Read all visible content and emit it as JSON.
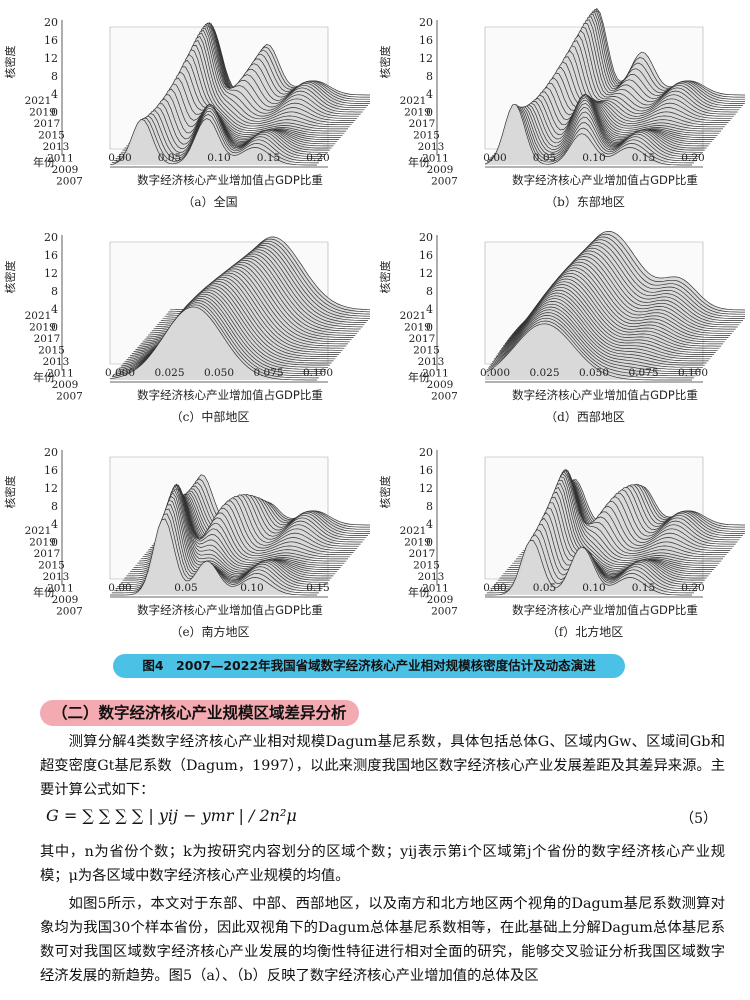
{
  "figure": {
    "panels": [
      {
        "id": "a",
        "caption": "（a）全国",
        "xticks": [
          "0.00",
          "0.05",
          "0.10",
          "0.15",
          "0.20"
        ],
        "peak": 0.045,
        "style": "multi"
      },
      {
        "id": "b",
        "caption": "（b）东部地区",
        "xticks": [
          "0.00",
          "0.05",
          "0.10",
          "0.15",
          "0.20"
        ],
        "peak": 0.05,
        "style": "multi"
      },
      {
        "id": "c",
        "caption": "（c）中部地区",
        "xticks": [
          "0.000",
          "0.025",
          "0.050",
          "0.075",
          "0.100"
        ],
        "peak": 0.045,
        "style": "smooth"
      },
      {
        "id": "d",
        "caption": "（d）西部地区",
        "xticks": [
          "0.000",
          "0.025",
          "0.050",
          "0.075",
          "0.100"
        ],
        "peak": 0.03,
        "style": "smooth"
      },
      {
        "id": "e",
        "caption": "（e）南方地区",
        "xticks": [
          "0.00",
          "0.05",
          "0.10",
          "0.15"
        ],
        "peak": 0.05,
        "style": "multi"
      },
      {
        "id": "f",
        "caption": "（f）北方地区",
        "xticks": [
          "0.00",
          "0.05",
          "0.10",
          "0.15",
          "0.20"
        ],
        "peak": 0.04,
        "style": "multi"
      }
    ],
    "zticks": [
      "0",
      "4",
      "8",
      "12",
      "16",
      "20"
    ],
    "years": [
      "2021",
      "2019",
      "2017",
      "2015",
      "2013",
      "2011",
      "2009",
      "2007"
    ],
    "zlabel": "核密度",
    "ylabel": "年份",
    "xlabel": "数字经济核心产业增加值占GDP比重",
    "title": "图4　2007—2022年我国省域数字经济核心产业相对规模核密度估计及动态演进"
  },
  "section": {
    "title": "（二）数字经济核心产业规模区域差异分析",
    "para1": "测算分解4类数字经济核心产业相对规模Dagum基尼系数，具体包括总体G、区域内Gw、区域间Gb和超变密度Gt基尼系数（Dagum，1997），以此来测度我国地区数字经济核心产业发展差距及其差异来源。主要计算公式如下：",
    "formula": "G = ∑ ∑ ∑ ∑ | yij − ymr | / 2n²μ",
    "formula_number": "（5）",
    "para2": "其中，n为省份个数；k为按研究内容划分的区域个数；yij表示第i个区域第j个省份的数字经济核心产业规模；μ为各区域中数字经济核心产业规模的均值。",
    "para3": "如图5所示，本文对于东部、中部、西部地区，以及南方和北方地区两个视角的Dagum基尼系数测算对象均为我国30个样本省份，因此双视角下的Dagum总体基尼系数相等，在此基础上分解Dagum总体基尼系数可对我国区域数字经济核心产业发展的均衡性特征进行相对全面的研究，能够交叉验证分析我国区域数字经济发展的新趋势。图5（a）、（b）反映了数字经济核心产业增加值的总体及区"
  }
}
